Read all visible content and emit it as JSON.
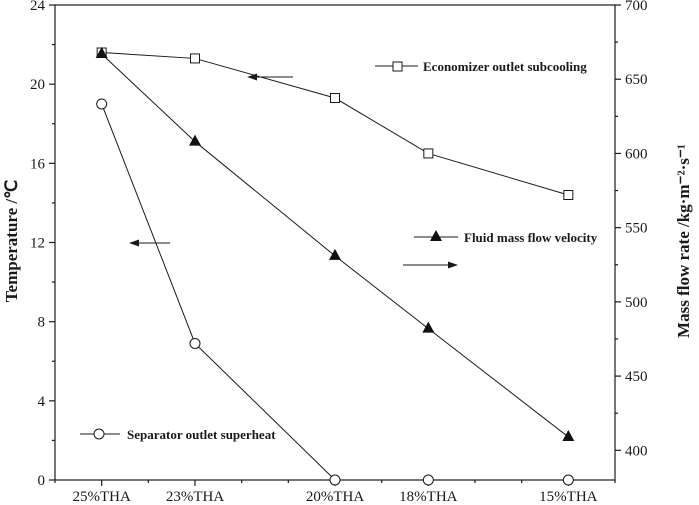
{
  "chart_data": {
    "type": "line",
    "categories": [
      "25%THA",
      "23%THA",
      "20%THA",
      "18%THA",
      "15%THA"
    ],
    "x_positions": [
      25,
      23,
      20,
      18,
      15
    ],
    "xlim": [
      26,
      14
    ],
    "ylabel_left": "Temperature /℃",
    "ylim_left": [
      0,
      24
    ],
    "yticks_left": [
      0,
      4,
      8,
      12,
      16,
      20,
      24
    ],
    "ylabel_right": "Mass flow rate /kg·m⁻²·s⁻¹",
    "ylim_right": [
      380,
      700
    ],
    "yticks_right": [
      400,
      450,
      500,
      550,
      600,
      650,
      700
    ],
    "series": [
      {
        "name": "Economizer outlet subcooling",
        "axis": "left",
        "marker": "open-square",
        "values": [
          21.6,
          21.3,
          19.3,
          16.5,
          14.4
        ]
      },
      {
        "name": "Fluid mass flow velocity",
        "axis": "right",
        "marker": "filled-triangle",
        "values": [
          667,
          608,
          531,
          482,
          409
        ]
      },
      {
        "name": "Separator outlet superheat",
        "axis": "left",
        "marker": "open-circle",
        "values": [
          19.0,
          6.9,
          0.0,
          0.0,
          0.0
        ]
      }
    ],
    "grid": false,
    "legend": "inline labels inside plot"
  }
}
